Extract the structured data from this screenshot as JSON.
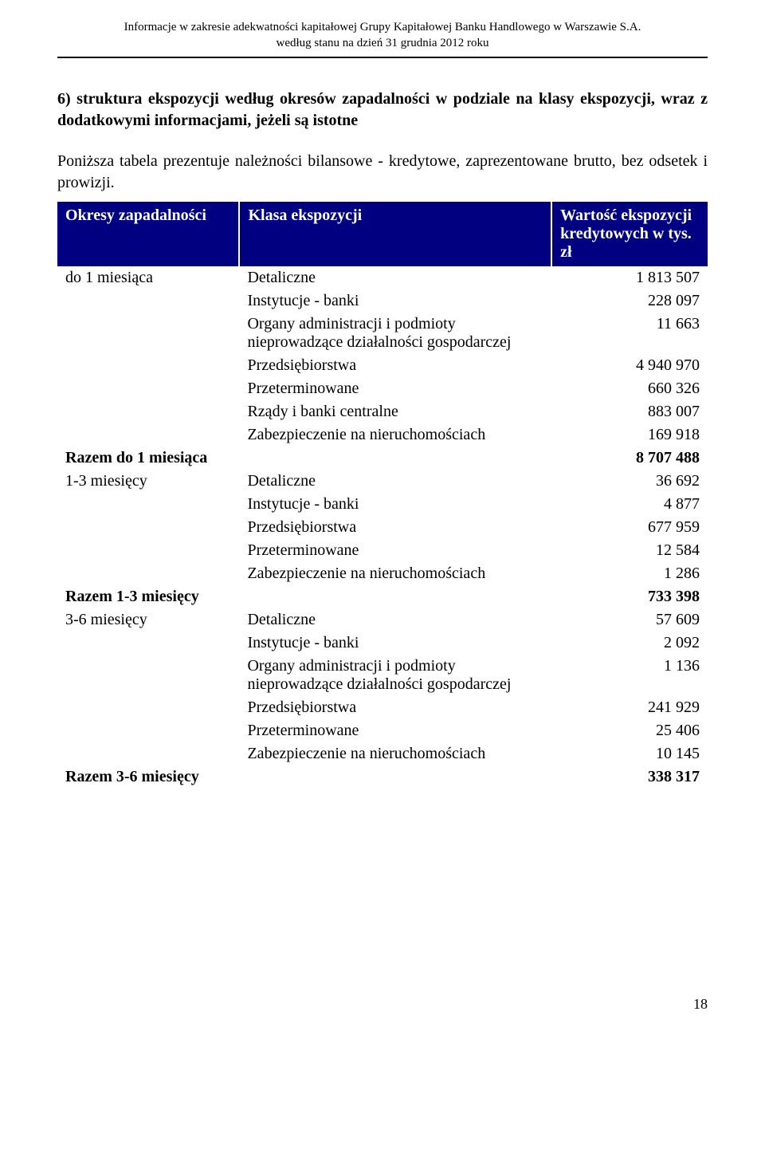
{
  "header": {
    "line1": "Informacje w zakresie adekwatności kapitałowej Grupy Kapitałowej Banku Handlowego w Warszawie S.A.",
    "line2": "według stanu na dzień 31 grudnia 2012 roku"
  },
  "section_title": "6) struktura ekspozycji według okresów zapadalności w podziale na klasy ekspozycji, wraz z dodatkowymi informacjami, jeżeli są istotne",
  "intro": "Poniższa tabela prezentuje należności bilansowe - kredytowe, zaprezentowane brutto, bez odsetek i prowizji.",
  "columns": {
    "c1": "Okresy zapadalności",
    "c2": "Klasa ekspozycji",
    "c3": "Wartość ekspozycji kredytowych w tys. zł"
  },
  "rows": [
    {
      "period": "do 1 miesiąca",
      "klass": "Detaliczne",
      "value": "1 813 507"
    },
    {
      "period": "",
      "klass": "Instytucje - banki",
      "value": "228 097"
    },
    {
      "period": "",
      "klass": "Organy administracji i podmioty nieprowadzące działalności gospodarczej",
      "value": "11 663"
    },
    {
      "period": "",
      "klass": "Przedsiębiorstwa",
      "value": "4 940 970"
    },
    {
      "period": "",
      "klass": "Przeterminowane",
      "value": "660 326"
    },
    {
      "period": "",
      "klass": "Rządy i banki centralne",
      "value": "883 007"
    },
    {
      "period": "",
      "klass": "Zabezpieczenie na nieruchomościach",
      "value": "169 918"
    },
    {
      "period": "Razem do 1 miesiąca",
      "klass": "",
      "value": "8 707 488",
      "subtotal": true
    },
    {
      "period": "1-3 miesięcy",
      "klass": "Detaliczne",
      "value": "36 692"
    },
    {
      "period": "",
      "klass": "Instytucje - banki",
      "value": "4 877"
    },
    {
      "period": "",
      "klass": "Przedsiębiorstwa",
      "value": "677 959"
    },
    {
      "period": "",
      "klass": "Przeterminowane",
      "value": "12 584"
    },
    {
      "period": "",
      "klass": "Zabezpieczenie na nieruchomościach",
      "value": "1 286"
    },
    {
      "period": "Razem 1-3 miesięcy",
      "klass": "",
      "value": "733 398",
      "subtotal": true
    },
    {
      "period": "3-6 miesięcy",
      "klass": "Detaliczne",
      "value": "57 609"
    },
    {
      "period": "",
      "klass": "Instytucje - banki",
      "value": "2 092"
    },
    {
      "period": "",
      "klass": "Organy administracji i podmioty nieprowadzące działalności gospodarczej",
      "value": "1 136"
    },
    {
      "period": "",
      "klass": "Przedsiębiorstwa",
      "value": "241 929"
    },
    {
      "period": "",
      "klass": "Przeterminowane",
      "value": "25 406"
    },
    {
      "period": "",
      "klass": "Zabezpieczenie na nieruchomościach",
      "value": "10 145"
    },
    {
      "period": "Razem 3-6 miesięcy",
      "klass": "",
      "value": "338 317",
      "subtotal": true
    }
  ],
  "page_number": "18",
  "colors": {
    "header_bg": "#000080",
    "header_fg": "#ffffff",
    "text": "#000000",
    "bg": "#ffffff"
  }
}
